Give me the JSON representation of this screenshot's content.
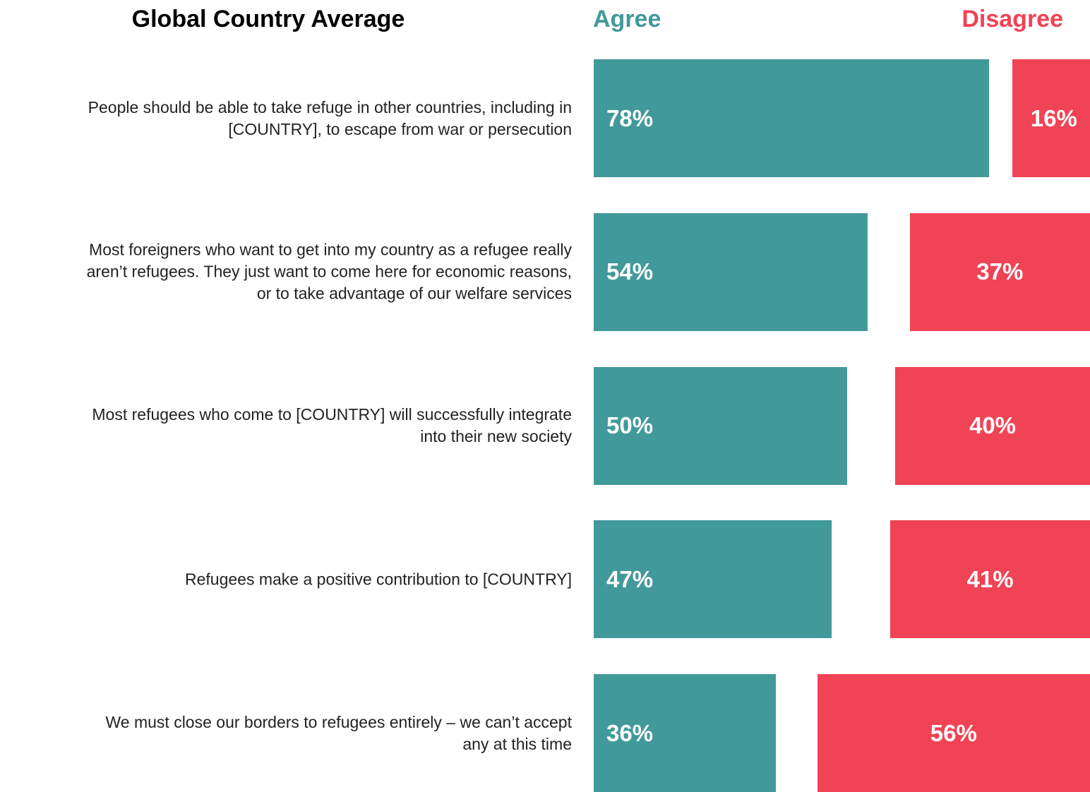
{
  "chart_data": {
    "type": "bar",
    "orientation": "horizontal",
    "title": "Global Country Average",
    "categories": [
      "People should be able to take refuge in other countries, including in\n[COUNTRY], to escape from war or persecution",
      "Most foreigners who want to get into my country as a refugee really\naren’t refugees. They just want to come here for economic reasons,\nor to take advantage of our welfare services",
      "Most refugees who come to [COUNTRY] will successfully integrate\ninto their new society",
      "Refugees make a positive contribution to [COUNTRY]",
      "We must close our borders to refugees entirely – we can’t accept\nany at this time"
    ],
    "series": [
      {
        "name": "Agree",
        "color": "#42999a",
        "values": [
          78,
          54,
          50,
          47,
          36
        ],
        "value_labels": [
          "78%",
          "54%",
          "50%",
          "47%",
          "36%"
        ]
      },
      {
        "name": "Disagree",
        "color": "#f04355",
        "values": [
          16,
          37,
          40,
          41,
          56
        ],
        "value_labels": [
          "16%",
          "37%",
          "40%",
          "41%",
          "56%"
        ]
      }
    ]
  }
}
